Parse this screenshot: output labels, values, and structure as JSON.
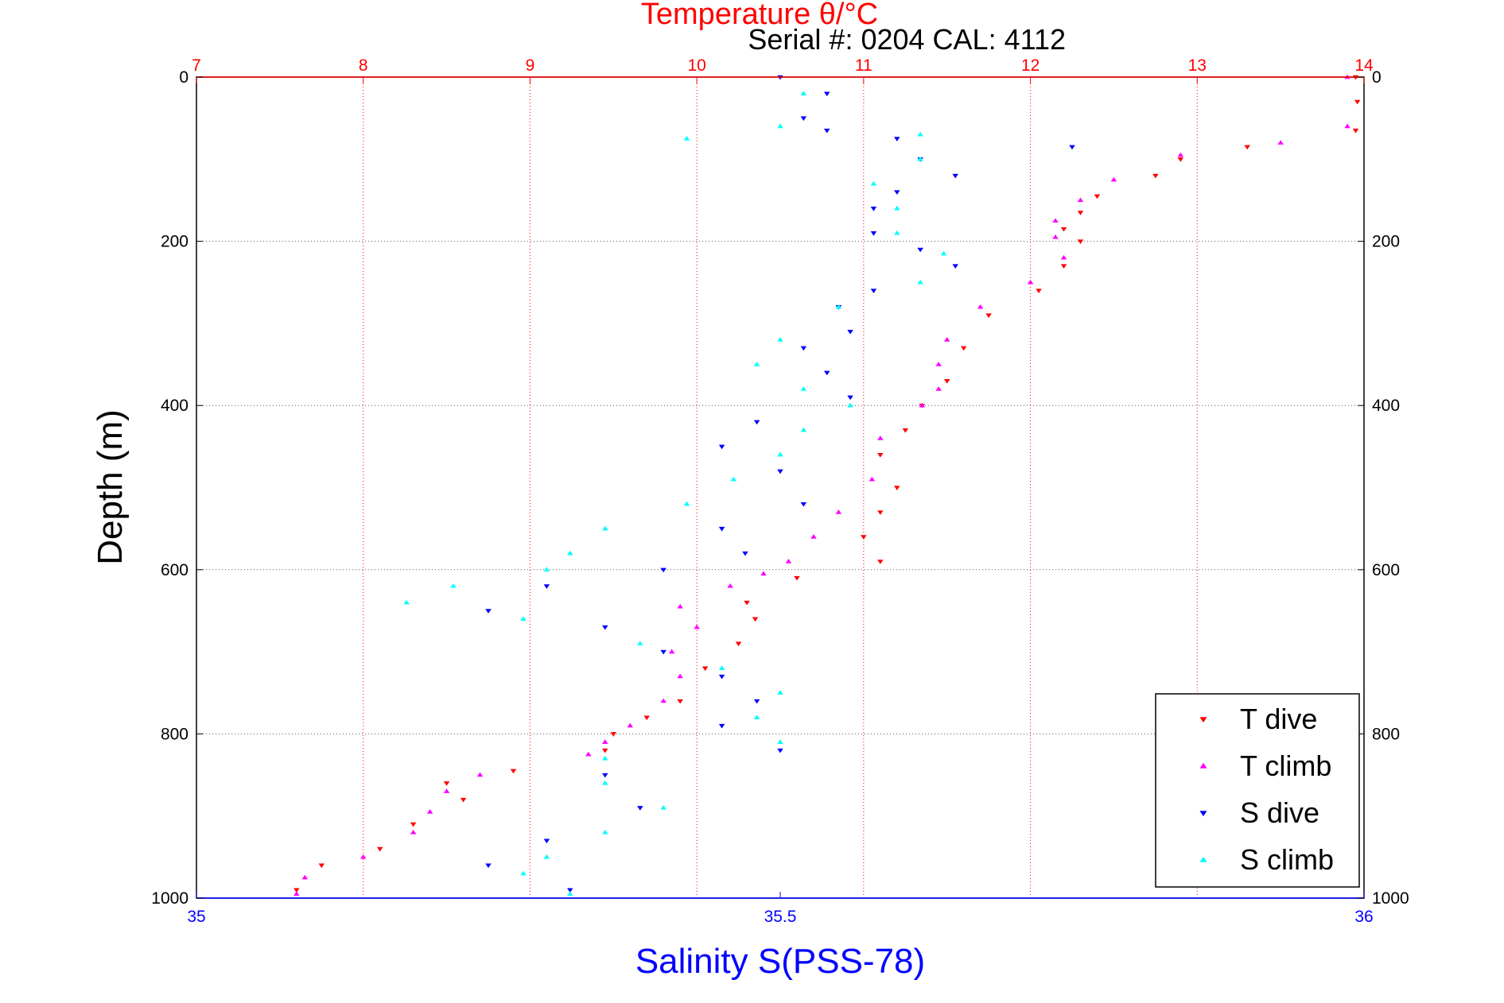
{
  "chart_data": {
    "type": "scatter",
    "title": "Temperature θ/°C",
    "subtitle": "Serial #: 0204  CAL: 4112",
    "ylabel": "Depth (m)",
    "xlabel": "Salinity S(PSS-78)",
    "ylim": [
      0,
      1000
    ],
    "y_reversed": true,
    "y_ticks": [
      "0",
      "200",
      "400",
      "600",
      "800",
      "1000"
    ],
    "temperature_axis": {
      "range": [
        7,
        14
      ],
      "ticks": [
        "7",
        "8",
        "9",
        "10",
        "11",
        "12",
        "13",
        "14"
      ],
      "color": "#ff0000"
    },
    "salinity_axis": {
      "range": [
        35,
        36
      ],
      "ticks": [
        "35",
        "35.5",
        "36"
      ],
      "color": "#0000ff"
    },
    "grid": true,
    "legend_position": "bottom-right",
    "series": [
      {
        "name": "T dive",
        "axis": "temperature",
        "marker": "triangle-down",
        "color": "#ff0000",
        "points": [
          [
            13.95,
            0
          ],
          [
            13.96,
            30
          ],
          [
            13.95,
            65
          ],
          [
            13.3,
            85
          ],
          [
            12.9,
            100
          ],
          [
            12.75,
            120
          ],
          [
            12.4,
            145
          ],
          [
            12.3,
            165
          ],
          [
            12.2,
            185
          ],
          [
            12.3,
            200
          ],
          [
            12.2,
            230
          ],
          [
            12.05,
            260
          ],
          [
            11.75,
            290
          ],
          [
            11.6,
            330
          ],
          [
            11.5,
            370
          ],
          [
            11.35,
            400
          ],
          [
            11.25,
            430
          ],
          [
            11.1,
            460
          ],
          [
            11.2,
            500
          ],
          [
            11.1,
            530
          ],
          [
            11.0,
            560
          ],
          [
            11.1,
            590
          ],
          [
            10.6,
            610
          ],
          [
            10.3,
            640
          ],
          [
            10.35,
            660
          ],
          [
            10.25,
            690
          ],
          [
            10.05,
            720
          ],
          [
            9.9,
            760
          ],
          [
            9.7,
            780
          ],
          [
            9.5,
            800
          ],
          [
            9.45,
            820
          ],
          [
            8.9,
            845
          ],
          [
            8.5,
            860
          ],
          [
            8.6,
            880
          ],
          [
            8.3,
            910
          ],
          [
            8.1,
            940
          ],
          [
            7.75,
            960
          ],
          [
            7.6,
            990
          ]
        ]
      },
      {
        "name": "T climb",
        "axis": "temperature",
        "marker": "triangle-up",
        "color": "#ff00ff",
        "points": [
          [
            13.9,
            0
          ],
          [
            13.9,
            60
          ],
          [
            13.5,
            80
          ],
          [
            12.9,
            95
          ],
          [
            12.5,
            125
          ],
          [
            12.3,
            150
          ],
          [
            12.15,
            175
          ],
          [
            12.15,
            195
          ],
          [
            12.2,
            220
          ],
          [
            12.0,
            250
          ],
          [
            11.7,
            280
          ],
          [
            11.5,
            320
          ],
          [
            11.45,
            350
          ],
          [
            11.45,
            380
          ],
          [
            11.35,
            400
          ],
          [
            11.1,
            440
          ],
          [
            11.05,
            490
          ],
          [
            10.85,
            530
          ],
          [
            10.7,
            560
          ],
          [
            10.55,
            590
          ],
          [
            10.4,
            605
          ],
          [
            10.2,
            620
          ],
          [
            9.9,
            645
          ],
          [
            10.0,
            670
          ],
          [
            9.85,
            700
          ],
          [
            9.9,
            730
          ],
          [
            9.8,
            760
          ],
          [
            9.6,
            790
          ],
          [
            9.45,
            810
          ],
          [
            9.35,
            825
          ],
          [
            8.7,
            850
          ],
          [
            8.5,
            870
          ],
          [
            8.4,
            895
          ],
          [
            8.3,
            920
          ],
          [
            8.0,
            950
          ],
          [
            7.65,
            975
          ],
          [
            7.6,
            995
          ]
        ]
      },
      {
        "name": "S dive",
        "axis": "salinity",
        "marker": "triangle-down",
        "color": "#0000ff",
        "points": [
          [
            35.5,
            0
          ],
          [
            35.54,
            20
          ],
          [
            35.52,
            50
          ],
          [
            35.54,
            65
          ],
          [
            35.6,
            75
          ],
          [
            35.75,
            85
          ],
          [
            35.62,
            100
          ],
          [
            35.65,
            120
          ],
          [
            35.6,
            140
          ],
          [
            35.58,
            160
          ],
          [
            35.58,
            190
          ],
          [
            35.62,
            210
          ],
          [
            35.65,
            230
          ],
          [
            35.58,
            260
          ],
          [
            35.55,
            280
          ],
          [
            35.56,
            310
          ],
          [
            35.52,
            330
          ],
          [
            35.54,
            360
          ],
          [
            35.56,
            390
          ],
          [
            35.48,
            420
          ],
          [
            35.45,
            450
          ],
          [
            35.5,
            480
          ],
          [
            35.52,
            520
          ],
          [
            35.45,
            550
          ],
          [
            35.47,
            580
          ],
          [
            35.4,
            600
          ],
          [
            35.3,
            620
          ],
          [
            35.25,
            650
          ],
          [
            35.35,
            670
          ],
          [
            35.4,
            700
          ],
          [
            35.45,
            730
          ],
          [
            35.48,
            760
          ],
          [
            35.45,
            790
          ],
          [
            35.5,
            820
          ],
          [
            35.35,
            850
          ],
          [
            35.38,
            890
          ],
          [
            35.3,
            930
          ],
          [
            35.25,
            960
          ],
          [
            35.32,
            990
          ]
        ]
      },
      {
        "name": "S climb",
        "axis": "salinity",
        "marker": "triangle-up",
        "color": "#00ffff",
        "points": [
          [
            35.52,
            20
          ],
          [
            35.5,
            60
          ],
          [
            35.42,
            75
          ],
          [
            35.62,
            70
          ],
          [
            35.62,
            100
          ],
          [
            35.58,
            130
          ],
          [
            35.6,
            160
          ],
          [
            35.6,
            190
          ],
          [
            35.64,
            215
          ],
          [
            35.62,
            250
          ],
          [
            35.55,
            280
          ],
          [
            35.5,
            320
          ],
          [
            35.48,
            350
          ],
          [
            35.52,
            380
          ],
          [
            35.56,
            400
          ],
          [
            35.52,
            430
          ],
          [
            35.5,
            460
          ],
          [
            35.46,
            490
          ],
          [
            35.42,
            520
          ],
          [
            35.35,
            550
          ],
          [
            35.32,
            580
          ],
          [
            35.3,
            600
          ],
          [
            35.22,
            620
          ],
          [
            35.18,
            640
          ],
          [
            35.28,
            660
          ],
          [
            35.38,
            690
          ],
          [
            35.45,
            720
          ],
          [
            35.5,
            750
          ],
          [
            35.48,
            780
          ],
          [
            35.5,
            810
          ],
          [
            35.35,
            830
          ],
          [
            35.35,
            860
          ],
          [
            35.4,
            890
          ],
          [
            35.35,
            920
          ],
          [
            35.3,
            950
          ],
          [
            35.28,
            970
          ],
          [
            35.32,
            995
          ]
        ]
      }
    ]
  }
}
